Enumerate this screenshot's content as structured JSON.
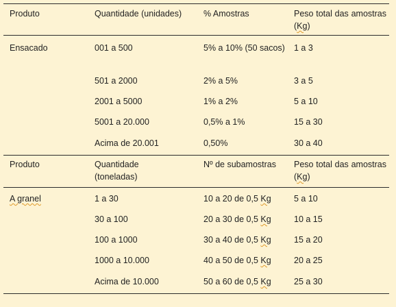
{
  "section1": {
    "headers": {
      "produto": "Produto",
      "quantidade": "Quantidade (unidades)",
      "amostras": "% Amostras",
      "peso_1": "Peso total das amostras (",
      "peso_kg": "Kg",
      "peso_2": ")"
    },
    "product": "Ensacado",
    "rows": [
      {
        "quantidade": "001 a 500",
        "amostras": "5% a 10% (50 sacos)",
        "peso": "1 a 3"
      },
      {
        "quantidade": "501 a 2000",
        "amostras": "2% a 5%",
        "peso": "3 a 5"
      },
      {
        "quantidade": "2001 a 5000",
        "amostras": "1% a 2%",
        "peso": "5 a 10"
      },
      {
        "quantidade": "5001 a 20.000",
        "amostras": "0,5% a 1%",
        "peso": "15 a 30"
      },
      {
        "quantidade": "Acima de 20.001",
        "amostras": "0,50%",
        "peso": "30 a 40"
      }
    ]
  },
  "section2": {
    "headers": {
      "produto": "Produto",
      "quantidade": "Quantidade (toneladas)",
      "subamostras": "Nº de subamostras",
      "peso_1": "Peso total das amostras (",
      "peso_kg": "Kg",
      "peso_2": ")"
    },
    "product": "A granel",
    "rows": [
      {
        "quantidade": "1 a 30",
        "sub_pre": "10 a 20 de 0,5 ",
        "sub_kg": "Kg",
        "peso": "5 a 10"
      },
      {
        "quantidade": "30 a 100",
        "sub_pre": "20 a 30 de 0,5 ",
        "sub_kg": "Kg",
        "peso": "10 a 15"
      },
      {
        "quantidade": "100 a 1000",
        "sub_pre": "30 a 40 de 0,5 ",
        "sub_kg": "Kg",
        "peso": "15 a 20"
      },
      {
        "quantidade": "1000 a 10.000",
        "sub_pre": "40 a 50 de 0,5 ",
        "sub_kg": "Kg",
        "peso": "20 a 25"
      },
      {
        "quantidade": "Acima de 10.000",
        "sub_pre": "50 a 60 de 0,5 ",
        "sub_kg": "Kg",
        "peso": "25 a 30"
      }
    ]
  }
}
